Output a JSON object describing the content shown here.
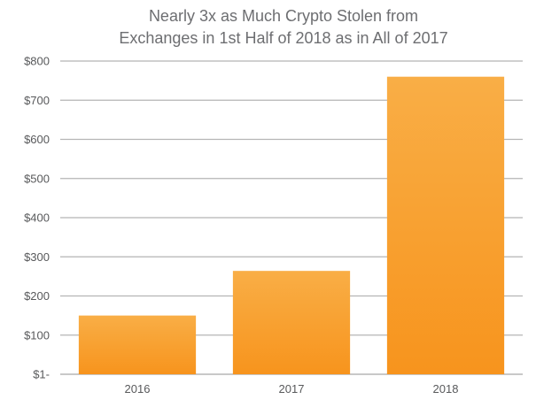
{
  "chart_data": {
    "type": "bar",
    "title_lines": [
      "Nearly 3x as Much Crypto Stolen from",
      "Exchanges in 1st Half of 2018 as in All of 2017"
    ],
    "categories": [
      "2016",
      "2017",
      "2018"
    ],
    "values": [
      150,
      264,
      760
    ],
    "ylim": [
      0,
      800
    ],
    "yticks": [
      0,
      100,
      200,
      300,
      400,
      500,
      600,
      700,
      800
    ],
    "ytick_labels": [
      "$1-",
      "$100",
      "$200",
      "$300",
      "$400",
      "$500",
      "$600",
      "$700",
      "$800"
    ],
    "grid": true,
    "bar_color_top": "#f9ae46",
    "bar_color_bottom": "#f7941d",
    "grid_color": "#b5b5b5"
  }
}
